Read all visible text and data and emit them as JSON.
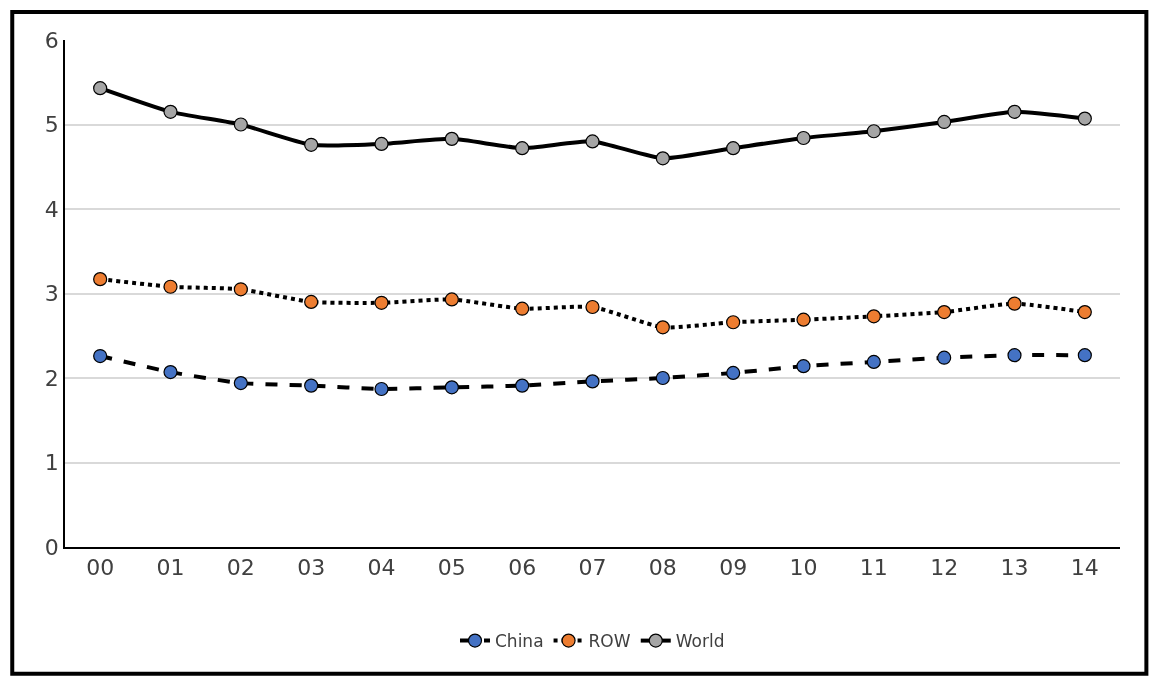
{
  "chart_data": {
    "type": "line",
    "categories": [
      "00",
      "01",
      "02",
      "03",
      "04",
      "05",
      "06",
      "07",
      "08",
      "09",
      "10",
      "11",
      "12",
      "13",
      "14"
    ],
    "series": [
      {
        "name": "China",
        "color": "#4472c4",
        "line_style": "dashed",
        "values": [
          2.26,
          2.07,
          1.94,
          1.91,
          1.87,
          1.89,
          1.91,
          1.96,
          2.0,
          2.06,
          2.14,
          2.19,
          2.24,
          2.27,
          2.27
        ]
      },
      {
        "name": "ROW",
        "color": "#ed7d31",
        "line_style": "dotted",
        "values": [
          3.17,
          3.08,
          3.05,
          2.9,
          2.89,
          2.93,
          2.82,
          2.84,
          2.6,
          2.66,
          2.69,
          2.73,
          2.78,
          2.88,
          2.78
        ]
      },
      {
        "name": "World",
        "color": "#a5a5a5",
        "line_style": "solid",
        "values": [
          5.43,
          5.15,
          5.0,
          4.76,
          4.77,
          4.83,
          4.72,
          4.8,
          4.6,
          4.72,
          4.84,
          4.92,
          5.03,
          5.15,
          5.07
        ]
      }
    ],
    "ylim": [
      0,
      6
    ],
    "yticks": [
      0,
      1,
      2,
      3,
      4,
      5,
      6
    ],
    "grid": "y",
    "legend": "bottom",
    "marker": "circle"
  }
}
